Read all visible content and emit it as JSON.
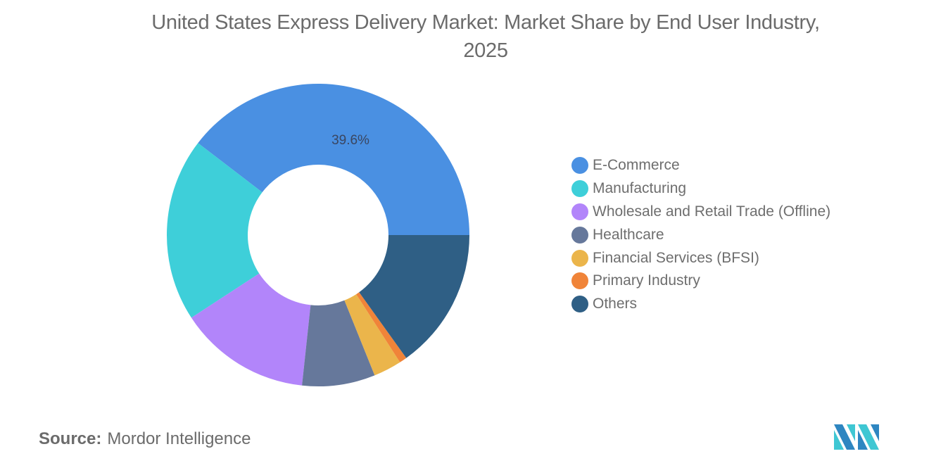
{
  "title": "United States Express Delivery Market: Market Share by End User Industry, 2025",
  "title_lines": [
    "United States Express Delivery Market: Market Share by End User Industry,",
    "2025"
  ],
  "source": {
    "key": "Source:",
    "value": "Mordor Intelligence"
  },
  "logo": {
    "icon": "mordor-intelligence-logo-icon",
    "colors": [
      "#2e86c1",
      "#3fc7d3"
    ]
  },
  "chart_data": {
    "type": "pie",
    "subtype": "donut",
    "title": "United States Express Delivery Market: Market Share by End User Industry, 2025",
    "categories": [
      "E-Commerce",
      "Manufacturing",
      "Wholesale and Retail Trade (Offline)",
      "Healthcare",
      "Financial Services (BFSI)",
      "Primary Industry",
      "Others"
    ],
    "values": [
      39.6,
      19.6,
      14.1,
      7.8,
      3.0,
      0.8,
      15.1
    ],
    "unit": "%",
    "colors": [
      "#4a90e2",
      "#3ecfd9",
      "#b285fa",
      "#66789b",
      "#ebb54b",
      "#f08439",
      "#2f5f85"
    ],
    "data_labels": [
      {
        "category": "E-Commerce",
        "text": "39.6%"
      }
    ],
    "start_angle": "3 o'clock, counter-clockwise",
    "legend_position": "right"
  },
  "legend": {
    "items": [
      {
        "label": "E-Commerce",
        "color": "#4a90e2"
      },
      {
        "label": "Manufacturing",
        "color": "#3ecfd9"
      },
      {
        "label": "Wholesale and Retail Trade (Offline)",
        "color": "#b285fa"
      },
      {
        "label": "Healthcare",
        "color": "#66789b"
      },
      {
        "label": "Financial Services (BFSI)",
        "color": "#ebb54b"
      },
      {
        "label": "Primary Industry",
        "color": "#f08439"
      },
      {
        "label": "Others",
        "color": "#2f5f85"
      }
    ]
  }
}
